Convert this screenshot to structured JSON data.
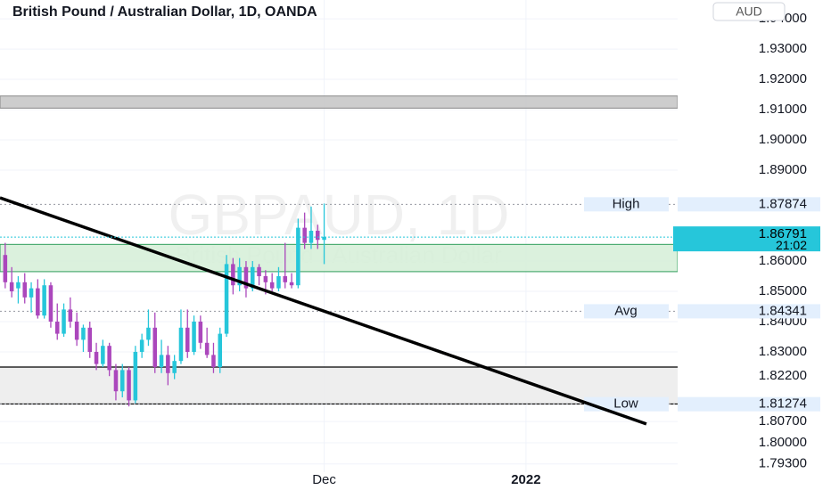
{
  "chart_data": {
    "type": "candlestick",
    "title": "British Pound / Australian Dollar, 1D, OANDA",
    "watermark": "GBPAUD, 1D",
    "watermark_subtitle": "British Pound / Australian Dollar",
    "currency": "AUD",
    "up_color": "#26c6da",
    "down_color": "#ab47bc",
    "grid": true,
    "xlim": [
      -0.8,
      103.3
    ],
    "xticks": [
      {
        "value": 49,
        "label": "Dec"
      },
      {
        "value": 80,
        "label": "2022"
      }
    ],
    "ylim": [
      1.7844,
      1.9462
    ],
    "yticks": [
      {
        "value": 1.94,
        "label": "1.94000"
      },
      {
        "value": 1.93,
        "label": "1.93000"
      },
      {
        "value": 1.92,
        "label": "1.92000"
      },
      {
        "value": 1.91,
        "label": "1.91000"
      },
      {
        "value": 1.9,
        "label": "1.90000"
      },
      {
        "value": 1.89,
        "label": "1.89000"
      },
      {
        "value": 1.86,
        "label": "1.86000"
      },
      {
        "value": 1.85,
        "label": "1.85000"
      },
      {
        "value": 1.84,
        "label": "1.84000"
      },
      {
        "value": 1.83,
        "label": "1.83000"
      },
      {
        "value": 1.822,
        "label": "1.82200"
      },
      {
        "value": 1.807,
        "label": "1.80700"
      },
      {
        "value": 1.8,
        "label": "1.80000"
      },
      {
        "value": 1.793,
        "label": "1.79300"
      }
    ],
    "x": [
      0,
      1,
      2,
      3,
      4,
      5,
      6,
      7,
      8,
      9,
      10,
      11,
      12,
      13,
      14,
      15,
      16,
      17,
      18,
      19,
      20,
      21,
      22,
      23,
      24,
      25,
      26,
      27,
      28,
      29,
      30,
      31,
      32,
      33,
      34,
      35,
      36,
      37,
      38,
      39,
      40,
      41,
      42,
      43,
      44,
      45,
      46,
      47,
      48,
      49
    ],
    "open": [
      1.862,
      1.853,
      1.851,
      1.853,
      1.848,
      1.851,
      1.842,
      1.852,
      1.84,
      1.836,
      1.844,
      1.84,
      1.834,
      1.838,
      1.83,
      1.826,
      1.832,
      1.824,
      1.817,
      1.824,
      1.814,
      1.83,
      1.834,
      1.838,
      1.825,
      1.829,
      1.823,
      1.827,
      1.838,
      1.83,
      1.84,
      1.833,
      1.829,
      1.825,
      1.836,
      1.859,
      1.852,
      1.858,
      1.851,
      1.858,
      1.855,
      1.853,
      1.851,
      1.855,
      1.853,
      1.852,
      1.871,
      1.866,
      1.87,
      1.867
    ],
    "high": [
      1.866,
      1.858,
      1.855,
      1.856,
      1.853,
      1.854,
      1.854,
      1.853,
      1.846,
      1.846,
      1.848,
      1.843,
      1.839,
      1.84,
      1.833,
      1.834,
      1.833,
      1.826,
      1.826,
      1.825,
      1.832,
      1.836,
      1.844,
      1.843,
      1.834,
      1.832,
      1.829,
      1.844,
      1.844,
      1.842,
      1.842,
      1.838,
      1.833,
      1.838,
      1.862,
      1.861,
      1.861,
      1.86,
      1.86,
      1.859,
      1.857,
      1.856,
      1.858,
      1.866,
      1.856,
      1.874,
      1.876,
      1.878,
      1.872,
      1.879
    ],
    "low": [
      1.851,
      1.848,
      1.846,
      1.846,
      1.843,
      1.841,
      1.841,
      1.838,
      1.834,
      1.835,
      1.838,
      1.832,
      1.83,
      1.828,
      1.824,
      1.825,
      1.822,
      1.814,
      1.815,
      1.812,
      1.813,
      1.828,
      1.832,
      1.823,
      1.823,
      1.819,
      1.821,
      1.826,
      1.828,
      1.829,
      1.831,
      1.828,
      1.823,
      1.823,
      1.835,
      1.849,
      1.85,
      1.848,
      1.85,
      1.852,
      1.849,
      1.85,
      1.85,
      1.851,
      1.851,
      1.851,
      1.864,
      1.864,
      1.864,
      1.859
    ],
    "close": [
      1.853,
      1.85,
      1.853,
      1.848,
      1.851,
      1.842,
      1.852,
      1.84,
      1.836,
      1.844,
      1.84,
      1.834,
      1.838,
      1.83,
      1.826,
      1.832,
      1.824,
      1.817,
      1.824,
      1.814,
      1.83,
      1.834,
      1.838,
      1.825,
      1.829,
      1.823,
      1.827,
      1.838,
      1.83,
      1.84,
      1.833,
      1.829,
      1.825,
      1.836,
      1.859,
      1.852,
      1.858,
      1.851,
      1.858,
      1.855,
      1.853,
      1.851,
      1.855,
      1.853,
      1.852,
      1.871,
      1.866,
      1.87,
      1.867,
      1.868
    ],
    "zones": [
      {
        "from": 1.9105,
        "to": 1.9145,
        "color": "#c8c8c8"
      },
      {
        "from": 1.8565,
        "to": 1.8655,
        "color": "#d7efd9"
      },
      {
        "from": 1.8128,
        "to": 1.825,
        "color": "#ececec"
      }
    ],
    "hlines": [
      1.825,
      1.8128
    ],
    "trendline": {
      "x": [
        -0.8,
        98.5
      ],
      "y": [
        1.8809,
        1.8062
      ]
    },
    "levels": [
      {
        "label": "High",
        "value": 1.87874
      },
      {
        "label": "Avg",
        "value": 1.84341
      },
      {
        "label": "Low",
        "value": 1.81274
      }
    ],
    "current": {
      "value": 1.86791,
      "countdown": "21:02"
    }
  }
}
